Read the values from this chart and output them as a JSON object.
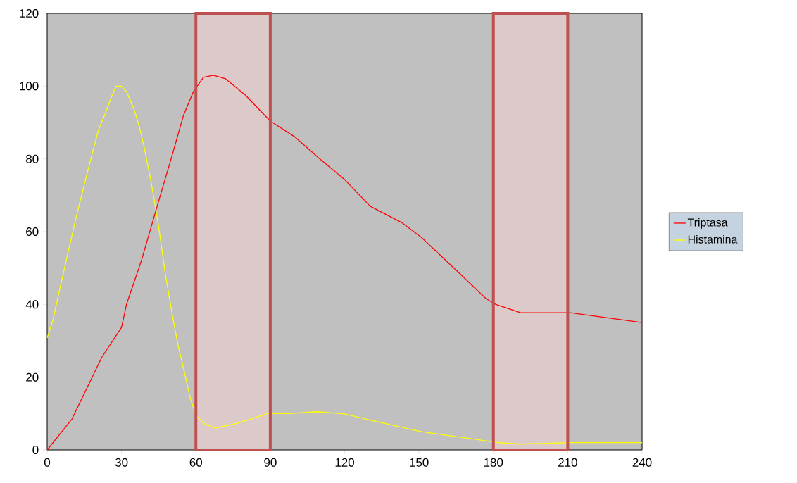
{
  "chart_data": {
    "type": "line",
    "xlim": [
      0,
      240
    ],
    "ylim": [
      0,
      120
    ],
    "xticks": [
      0,
      30,
      60,
      90,
      120,
      150,
      180,
      210,
      240
    ],
    "yticks": [
      0,
      20,
      40,
      60,
      80,
      100,
      120
    ],
    "legend": "right",
    "marker": "none",
    "line_style": "solid",
    "series": [
      {
        "name": "Triptasa",
        "color": "#ff0000",
        "x": [
          0,
          10,
          22,
          30,
          32,
          38,
          45,
          50,
          55,
          59,
          63,
          67,
          72,
          80,
          90,
          100,
          110,
          120,
          130.3,
          143,
          151,
          165.6,
          177,
          181,
          191,
          211,
          240
        ],
        "values": [
          0,
          8.5,
          25.4,
          33.7,
          40,
          52,
          68.5,
          80,
          92,
          98.5,
          102.4,
          103,
          102,
          97.5,
          90.4,
          86,
          80,
          74.3,
          67,
          62.5,
          58.4,
          49,
          41.6,
          40,
          37.7,
          37.7,
          35
        ]
      },
      {
        "name": "Histamina",
        "color": "#ffff00",
        "x": [
          0,
          2.3,
          5,
          8,
          11.6,
          15,
          18,
          20.7,
          23.6,
          25.9,
          27.8,
          29.8,
          32,
          35,
          37.2,
          39.2,
          42,
          44.9,
          47.7,
          50.6,
          52.8,
          54.8,
          57.7,
          60,
          63.4,
          67.6,
          74.7,
          80.4,
          89,
          97.4,
          108.8,
          120,
          131.5,
          151,
          168.5,
          182,
          191,
          211,
          240
        ],
        "values": [
          30.8,
          35.6,
          44,
          53,
          63.7,
          73,
          81,
          88,
          92.7,
          97,
          100,
          100,
          98.5,
          93.7,
          88.8,
          83,
          73.4,
          61.7,
          48.2,
          36.6,
          28.8,
          23,
          14.3,
          9.5,
          7.2,
          6,
          7,
          8.1,
          10,
          10,
          10.5,
          9.9,
          8,
          5,
          3.3,
          2,
          1.6,
          2,
          2
        ]
      }
    ],
    "bands": [
      {
        "axis": "x",
        "from": 60,
        "to": 90,
        "color": "#dccaca"
      },
      {
        "axis": "x",
        "from": 180,
        "to": 210,
        "color": "#dccaca"
      }
    ]
  }
}
